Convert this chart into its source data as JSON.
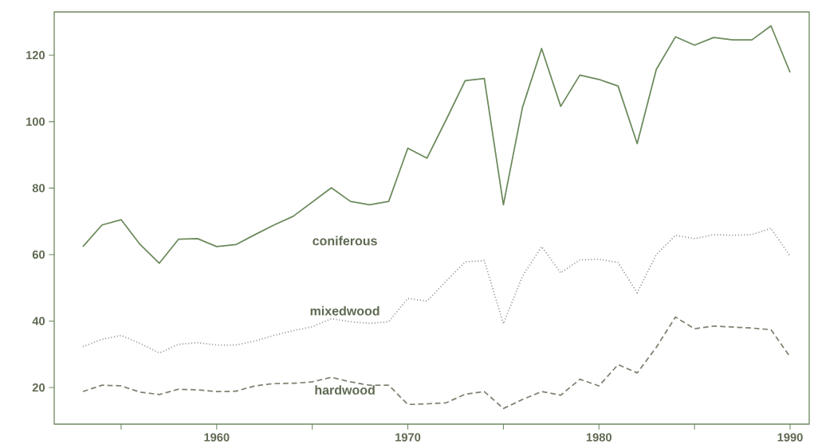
{
  "chart_data": {
    "type": "line",
    "x": [
      1953,
      1954,
      1955,
      1956,
      1957,
      1958,
      1959,
      1960,
      1961,
      1962,
      1963,
      1964,
      1965,
      1966,
      1967,
      1968,
      1969,
      1970,
      1971,
      1972,
      1973,
      1974,
      1975,
      1976,
      1977,
      1978,
      1979,
      1980,
      1981,
      1982,
      1983,
      1984,
      1985,
      1986,
      1987,
      1988,
      1989,
      1990
    ],
    "series": [
      {
        "name": "coniferous",
        "color": "#6b8a5c",
        "line_style": "solid",
        "values": [
          62.4,
          68.9,
          70.5,
          63,
          57.4,
          64.6,
          64.8,
          62.4,
          63,
          66,
          68.9,
          71.5,
          75.8,
          80.1,
          76,
          75,
          76,
          92,
          89,
          100.5,
          112.3,
          113,
          75,
          104.3,
          122,
          104.6,
          114,
          112.7,
          110.7,
          93.4,
          115.7,
          125.5,
          123,
          125.3,
          124.6,
          124.6,
          128.8,
          114.8
        ]
      },
      {
        "name": "mixedwood",
        "color": "#8f918a",
        "line_style": "dotted",
        "values": [
          32.3,
          34.5,
          35.7,
          33.3,
          30.4,
          33,
          33.5,
          32.8,
          32.8,
          34,
          35.7,
          37.1,
          38.3,
          40.7,
          39.8,
          39.3,
          39.8,
          46.8,
          46,
          52,
          57.8,
          58.2,
          39.2,
          53.5,
          62.4,
          54.5,
          58.4,
          58.6,
          57.6,
          48.5,
          60,
          65.8,
          64.8,
          66,
          65.8,
          66,
          67.9,
          59.5
        ]
      },
      {
        "name": "hardwood",
        "color": "#7a8270",
        "line_style": "dashed",
        "values": [
          18.8,
          20.7,
          20.5,
          18.6,
          17.9,
          19.5,
          19.3,
          18.8,
          18.9,
          20.5,
          21.2,
          21.3,
          21.7,
          23.1,
          21.7,
          20.7,
          20.7,
          14.9,
          15.1,
          15.4,
          18,
          18.8,
          13.7,
          16.4,
          18.8,
          17.7,
          22.5,
          20.5,
          26.9,
          24.4,
          32.1,
          41.2,
          37.7,
          38.5,
          38.2,
          37.9,
          37.4,
          29.2
        ]
      }
    ],
    "xlim": [
      1951.5,
      1991
    ],
    "ylim": [
      9,
      133
    ],
    "xticks": [
      {
        "value": 1955,
        "label": null
      },
      1960,
      {
        "value": 1965,
        "label": null
      },
      1970,
      {
        "value": 1975,
        "label": null
      },
      1980,
      {
        "value": 1985,
        "label": null
      },
      1990
    ],
    "yticks": [
      20,
      40,
      60,
      80,
      100,
      120
    ],
    "grid": false,
    "legend": false
  }
}
